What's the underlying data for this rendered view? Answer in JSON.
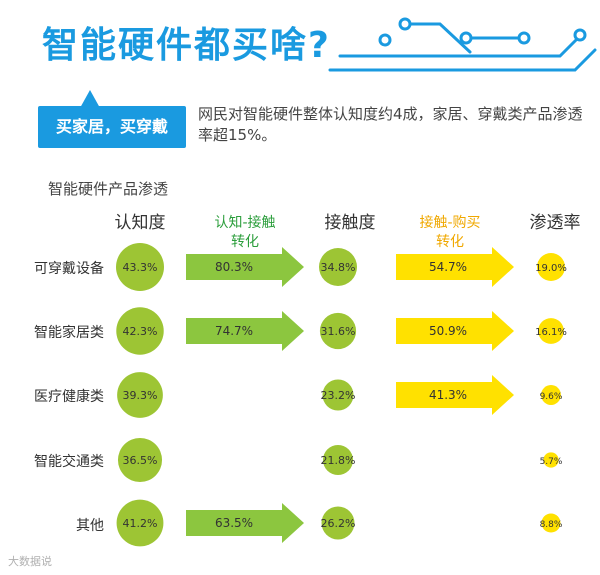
{
  "title": "智能硬件都买啥?",
  "badge": "买家居，买穿戴",
  "summary": "网民对智能硬件整体认知度约4成，家居、穿戴类产品渗透率超15%。",
  "subtitle": "智能硬件产品渗透",
  "watermark": "大数据说",
  "colors": {
    "blue": "#1a9ae0",
    "green_circle": "#9dc534",
    "green_arrow": "#8cc63f",
    "yellow": "#ffe100",
    "green_text": "#2c9e3c",
    "orange_text": "#f0a800"
  },
  "chart_data": {
    "type": "table",
    "headers": {
      "awareness": "认知度",
      "conv1": [
        "认知-接触",
        "转化"
      ],
      "contact": "接触度",
      "conv2": [
        "接触-购买",
        "转化"
      ],
      "penetration": "渗透率"
    },
    "categories": [
      "可穿戴设备",
      "智能家居类",
      "医疗健康类",
      "智能交通类",
      "其他"
    ],
    "series": [
      {
        "name": "认知度",
        "values": [
          43.3,
          42.3,
          39.3,
          36.5,
          41.2
        ]
      },
      {
        "name": "认知-接触转化",
        "values": [
          80.3,
          74.7,
          null,
          null,
          63.5
        ]
      },
      {
        "name": "接触度",
        "values": [
          34.8,
          31.6,
          23.2,
          21.8,
          26.2
        ]
      },
      {
        "name": "接触-购买转化",
        "values": [
          54.7,
          50.9,
          41.3,
          null,
          null
        ]
      },
      {
        "name": "渗透率",
        "values": [
          19.0,
          16.1,
          9.6,
          5.7,
          8.8
        ]
      }
    ],
    "labels": {
      "awareness": [
        "43.3%",
        "42.3%",
        "39.3%",
        "36.5%",
        "41.2%"
      ],
      "conv1": [
        "80.3%",
        "74.7%",
        "",
        "",
        "63.5%"
      ],
      "contact": [
        "34.8%",
        "31.6%",
        "23.2%",
        "21.8%",
        "26.2%"
      ],
      "conv2": [
        "54.7%",
        "50.9%",
        "41.3%",
        "",
        ""
      ],
      "penetration": [
        "19.0%",
        "16.1%",
        "9.6%",
        "5.7%",
        "8.8%"
      ]
    }
  }
}
